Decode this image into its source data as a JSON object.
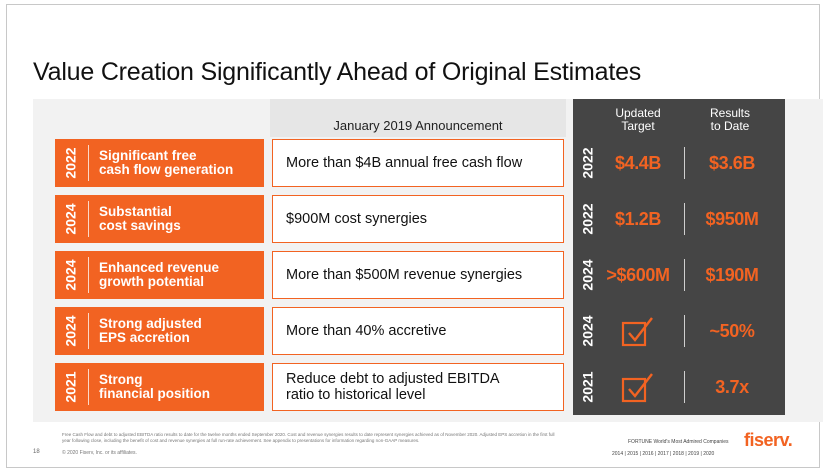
{
  "title": "Value Creation Significantly Ahead of Original Estimates",
  "header": {
    "announcement": "January 2019 Announcement",
    "updated_target": "Updated\nTarget",
    "results_to_date": "Results\nto Date"
  },
  "rows": [
    {
      "year": "2022",
      "label": "Significant free\ncash flow generation",
      "announcement": "More than $4B annual free cash flow",
      "target_year": "2022",
      "target": "$4.4B",
      "result": "$3.6B"
    },
    {
      "year": "2024",
      "label": "Substantial\ncost savings",
      "announcement": "$900M cost synergies",
      "target_year": "2022",
      "target": "$1.2B",
      "result": "$950M"
    },
    {
      "year": "2024",
      "label": "Enhanced revenue\ngrowth potential",
      "announcement": "More than $500M revenue synergies",
      "target_year": "2024",
      "target": ">$600M",
      "result": "$190M"
    },
    {
      "year": "2024",
      "label": "Strong adjusted\nEPS accretion",
      "announcement": "More than 40% accretive",
      "target_year": "2024",
      "target": "checkmark",
      "result": "~50%"
    },
    {
      "year": "2021",
      "label": "Strong\nfinancial position",
      "announcement": "Reduce debt to adjusted EBITDA\nratio to historical level",
      "target_year": "2021",
      "target": "checkmark",
      "result": "3.7x"
    }
  ],
  "footer": {
    "footnote": "Free Cash Flow and debt to adjusted EBITDA ratio results to date for the twelve months ended September 2020. Cost and revenue synergies results to date represent synergies achieved as of November 2020. Adjusted EPS accretion in the first full year following close, including the benefit of cost and revenue synergies at full run-rate achievement. See appendix to presentations for information regarding non-GAAP measures.",
    "page_number": "18",
    "copyright": "© 2020 Fiserv, Inc. or its affiliates.",
    "fortune_line1": "FORTUNE World's Most Admired Companies",
    "fortune_years": "2014 | 2015 | 2016 | 2017 | 2018 | 2019 | 2020",
    "logo": "fiserv."
  },
  "colors": {
    "accent": "#f26322",
    "panel": "#454545",
    "band": "#f2f2f2"
  },
  "icons": {
    "check": "checkbox-check-icon"
  }
}
